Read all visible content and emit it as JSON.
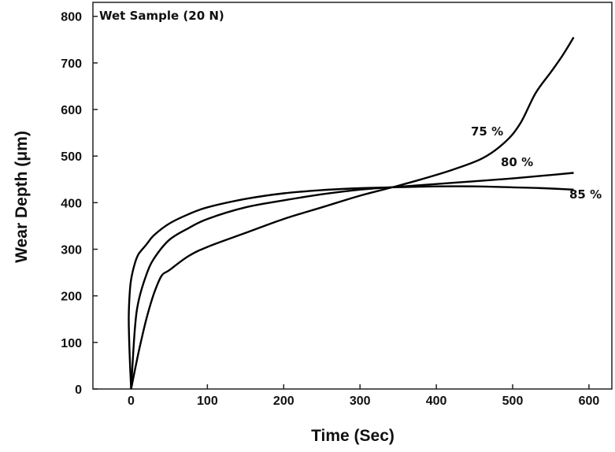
{
  "chart_data": {
    "type": "line",
    "annotation": "Wet Sample (20 N)",
    "xlabel": "Time (Sec)",
    "ylabel": "Wear Depth (μm)",
    "xlim": [
      -50,
      630
    ],
    "ylim": [
      0,
      830
    ],
    "xticks": [
      0,
      100,
      200,
      300,
      400,
      500,
      600
    ],
    "yticks": [
      0,
      100,
      200,
      300,
      400,
      500,
      600,
      700,
      800
    ],
    "grid": false,
    "series": [
      {
        "name": "75 %",
        "x": [
          0,
          10,
          20,
          30,
          40,
          50,
          75,
          100,
          150,
          200,
          250,
          300,
          340,
          380,
          420,
          460,
          490,
          510,
          530,
          550,
          565,
          580
        ],
        "y": [
          0,
          80,
          150,
          205,
          243,
          255,
          285,
          305,
          335,
          365,
          390,
          415,
          432,
          450,
          470,
          495,
          530,
          570,
          635,
          680,
          715,
          755
        ]
      },
      {
        "name": "80 %",
        "x": [
          0,
          5,
          10,
          20,
          30,
          50,
          75,
          100,
          150,
          200,
          250,
          300,
          340,
          400,
          450,
          500,
          540,
          580
        ],
        "y": [
          0,
          130,
          190,
          245,
          280,
          320,
          345,
          365,
          390,
          405,
          418,
          428,
          433,
          440,
          446,
          452,
          458,
          464
        ]
      },
      {
        "name": "85 %",
        "x": [
          0,
          -2,
          -3,
          -2,
          0,
          5,
          10,
          20,
          30,
          50,
          75,
          100,
          150,
          200,
          250,
          300,
          340,
          400,
          450,
          500,
          540,
          580
        ],
        "y": [
          0,
          80,
          150,
          200,
          235,
          270,
          290,
          310,
          330,
          355,
          375,
          390,
          408,
          420,
          427,
          431,
          433,
          435,
          435,
          433,
          431,
          428
        ]
      }
    ]
  }
}
